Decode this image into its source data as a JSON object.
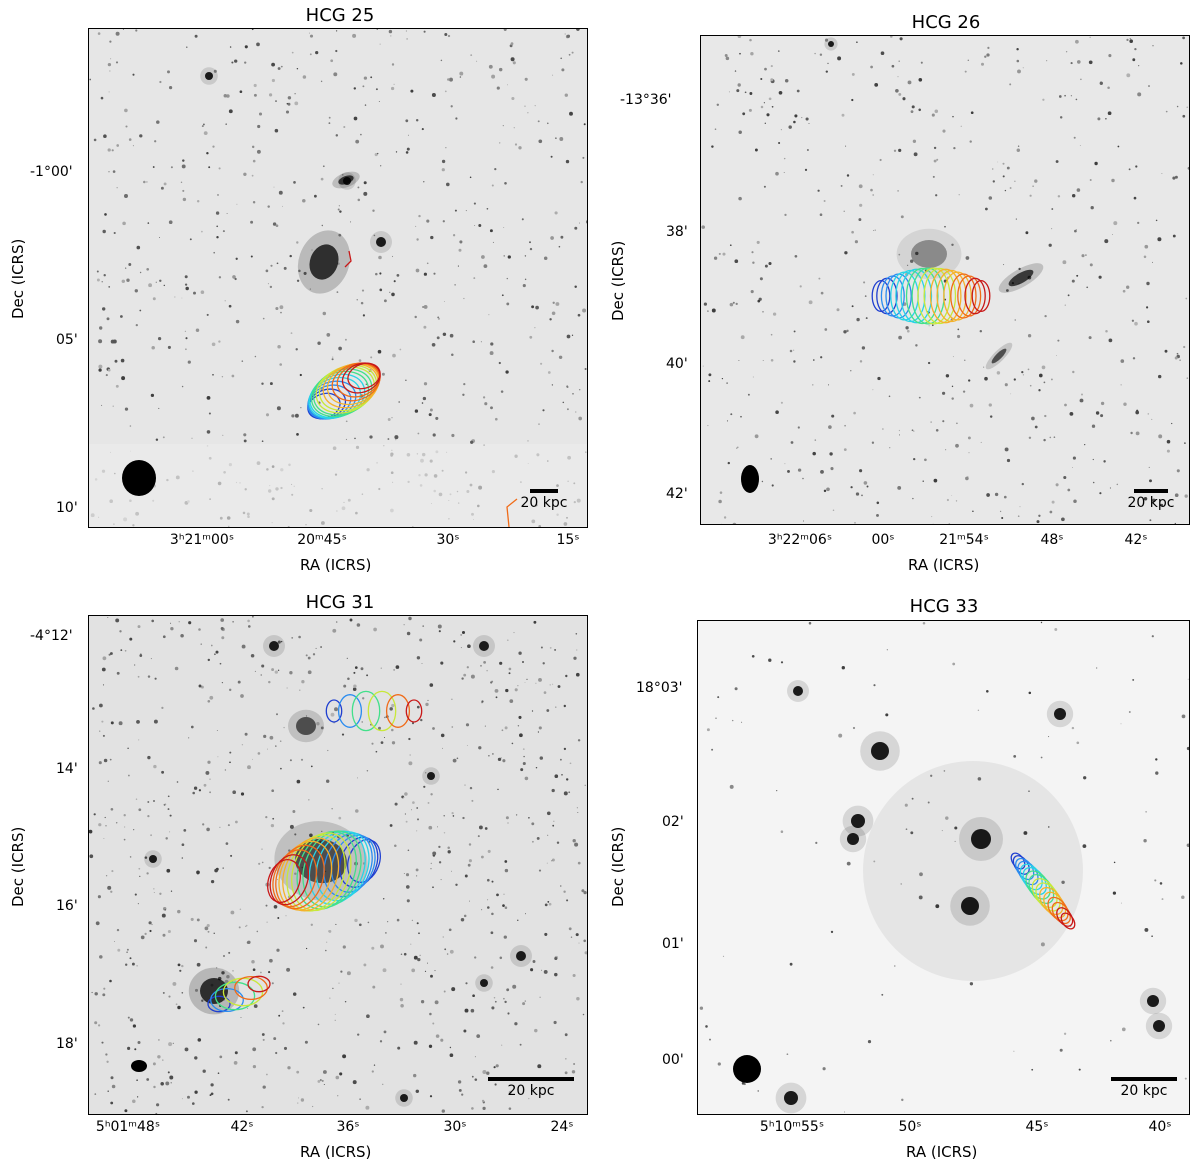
{
  "panels": [
    {
      "title": "HCG 25",
      "xlabel": "RA (ICRS)",
      "ylabel": "Dec (ICRS)",
      "xticks": [
        {
          "label": "3h21m00s",
          "main": "3",
          "h": "h",
          "m21": "21",
          "m": "m",
          "s00": "00",
          "s": "s"
        },
        {
          "label": "20m45s"
        },
        {
          "label": "30s"
        },
        {
          "label": "15s"
        }
      ],
      "xtick_text": [
        "3ʰ21ᵐ00ˢ",
        "20ᵐ45ˢ",
        "30ˢ",
        "15ˢ"
      ],
      "ytick_text": [
        "-1°00'",
        "05'",
        "10'"
      ],
      "scalebar": "20 kpc"
    },
    {
      "title": "HCG 26",
      "xlabel": "RA (ICRS)",
      "ylabel": "Dec (ICRS)",
      "xtick_text": [
        "3ʰ22ᵐ06ˢ",
        "00ˢ",
        "21ᵐ54ˢ",
        "48ˢ",
        "42ˢ"
      ],
      "ytick_text": [
        "-13°36'",
        "38'",
        "40'",
        "42'"
      ],
      "scalebar": "20 kpc"
    },
    {
      "title": "HCG 31",
      "xlabel": "RA (ICRS)",
      "ylabel": "Dec (ICRS)",
      "xtick_text": [
        "5ʰ01ᵐ48ˢ",
        "42ˢ",
        "36ˢ",
        "30ˢ",
        "24ˢ"
      ],
      "ytick_text": [
        "-4°12'",
        "14'",
        "16'",
        "18'"
      ],
      "scalebar": "20 kpc"
    },
    {
      "title": "HCG 33",
      "xlabel": "RA (ICRS)",
      "ylabel": "Dec (ICRS)",
      "xtick_text": [
        "5ʰ10ᵐ55ˢ",
        "50ˢ",
        "45ˢ",
        "40ˢ"
      ],
      "ytick_text": [
        "18°03'",
        "02'",
        "01'",
        "00'"
      ],
      "scalebar": "20 kpc"
    }
  ],
  "colors": {
    "contour_ramp": [
      "#1f3fd0",
      "#2a8cf0",
      "#28d4e6",
      "#42e08a",
      "#c8e83a",
      "#f5b22a",
      "#f06b18",
      "#c81818"
    ],
    "background_sky": "#e4e4e4",
    "star": "#1a1a1a"
  }
}
